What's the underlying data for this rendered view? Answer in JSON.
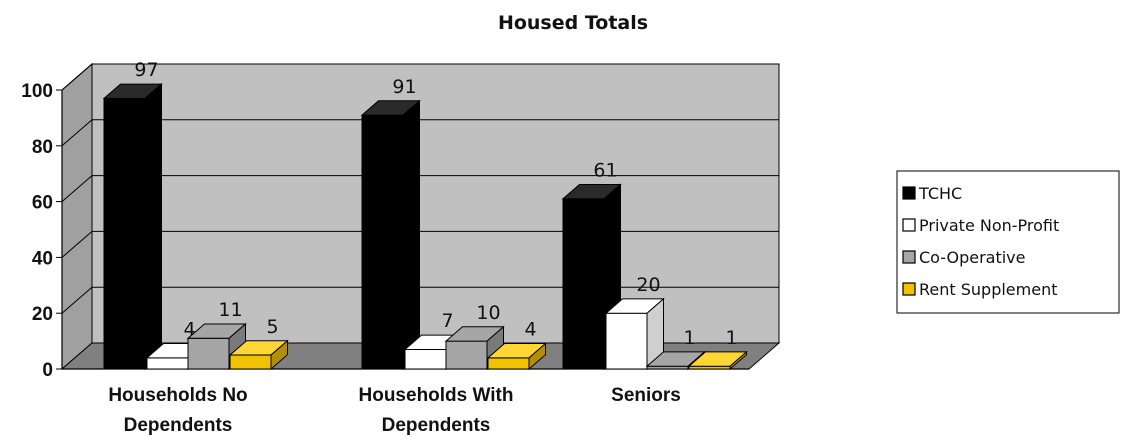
{
  "chart_data": {
    "type": "bar",
    "title": "Housed Totals",
    "categories": [
      [
        "Households No",
        "Dependents"
      ],
      [
        "Households With",
        "Dependents"
      ],
      [
        "Seniors"
      ]
    ],
    "series": [
      {
        "name": "TCHC",
        "values": [
          97,
          91,
          61
        ],
        "color": "#000000",
        "top": "#2a2a2a",
        "side": "#000000"
      },
      {
        "name": "Private Non-Profit",
        "values": [
          4,
          7,
          20
        ],
        "color": "#ffffff",
        "top": "#ffffff",
        "side": "#cfcfcf"
      },
      {
        "name": "Co-Operative",
        "values": [
          11,
          10,
          1
        ],
        "color": "#a6a6a6",
        "top": "#a6a6a6",
        "side": "#7a7a7a"
      },
      {
        "name": "Rent Supplement",
        "values": [
          5,
          4,
          1
        ],
        "color": "#f2c200",
        "top": "#ffd633",
        "side": "#b38f00"
      }
    ],
    "yticks": [
      "0",
      "20",
      "40",
      "60",
      "80",
      "100"
    ],
    "ylim": [
      0,
      100
    ],
    "legend": "right",
    "grid": true,
    "colors": {
      "wall": "#c0c0c0",
      "floor": "#808080",
      "grid": "#000000"
    }
  }
}
